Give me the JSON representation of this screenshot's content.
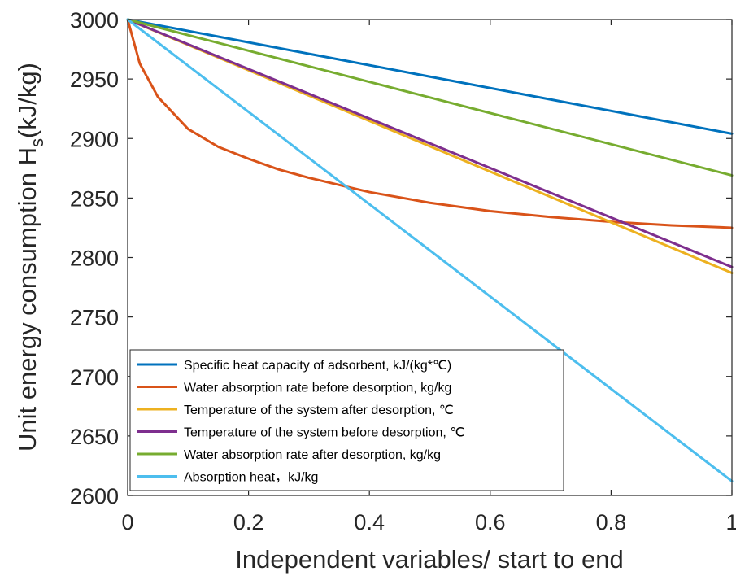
{
  "chart_data": {
    "type": "line",
    "xlabel": "Independent variables/ start to end",
    "ylabel_main": "Unit energy consumption H",
    "ylabel_sub": "s",
    "ylabel_tail": "(kJ/kg)",
    "xlim": [
      0,
      1
    ],
    "ylim": [
      2600,
      3000
    ],
    "xticks": [
      0,
      0.2,
      0.4,
      0.6,
      0.8,
      1
    ],
    "xtick_labels": [
      "0",
      "0.2",
      "0.4",
      "0.6",
      "0.8",
      "1"
    ],
    "yticks": [
      2600,
      2650,
      2700,
      2750,
      2800,
      2850,
      2900,
      2950,
      3000
    ],
    "ytick_labels": [
      "2600",
      "2650",
      "2700",
      "2750",
      "2800",
      "2850",
      "2900",
      "2950",
      "3000"
    ],
    "grid": false,
    "legend_position": "bottom-left",
    "series": [
      {
        "name": "Specific heat capacity of adsorbent, kJ/(kg*℃)",
        "color": "#0072BD",
        "x": [
          0,
          1
        ],
        "y": [
          3000,
          2904
        ]
      },
      {
        "name": "Water absorption rate before desorption, kg/kg",
        "color": "#D95319",
        "x": [
          0,
          0.02,
          0.05,
          0.1,
          0.15,
          0.2,
          0.25,
          0.3,
          0.35,
          0.4,
          0.5,
          0.6,
          0.7,
          0.8,
          0.9,
          1.0
        ],
        "y": [
          3000,
          2963,
          2935,
          2908,
          2893,
          2883,
          2874,
          2867,
          2861,
          2855,
          2846,
          2839,
          2834,
          2830,
          2827,
          2825
        ]
      },
      {
        "name": "Temperature of the system after desorption, ℃",
        "color": "#EDB120",
        "x": [
          0,
          1
        ],
        "y": [
          3000,
          2787
        ]
      },
      {
        "name": "Temperature of the system before desorption, ℃",
        "color": "#7E2F8E",
        "x": [
          0,
          1
        ],
        "y": [
          3000,
          2792
        ]
      },
      {
        "name": "Water absorption rate after desorption, kg/kg",
        "color": "#77AC30",
        "x": [
          0,
          1
        ],
        "y": [
          3000,
          2869
        ]
      },
      {
        "name": "Absorption heat，kJ/kg",
        "color": "#4DBEEE",
        "x": [
          0,
          1
        ],
        "y": [
          3000,
          2612
        ]
      }
    ]
  }
}
